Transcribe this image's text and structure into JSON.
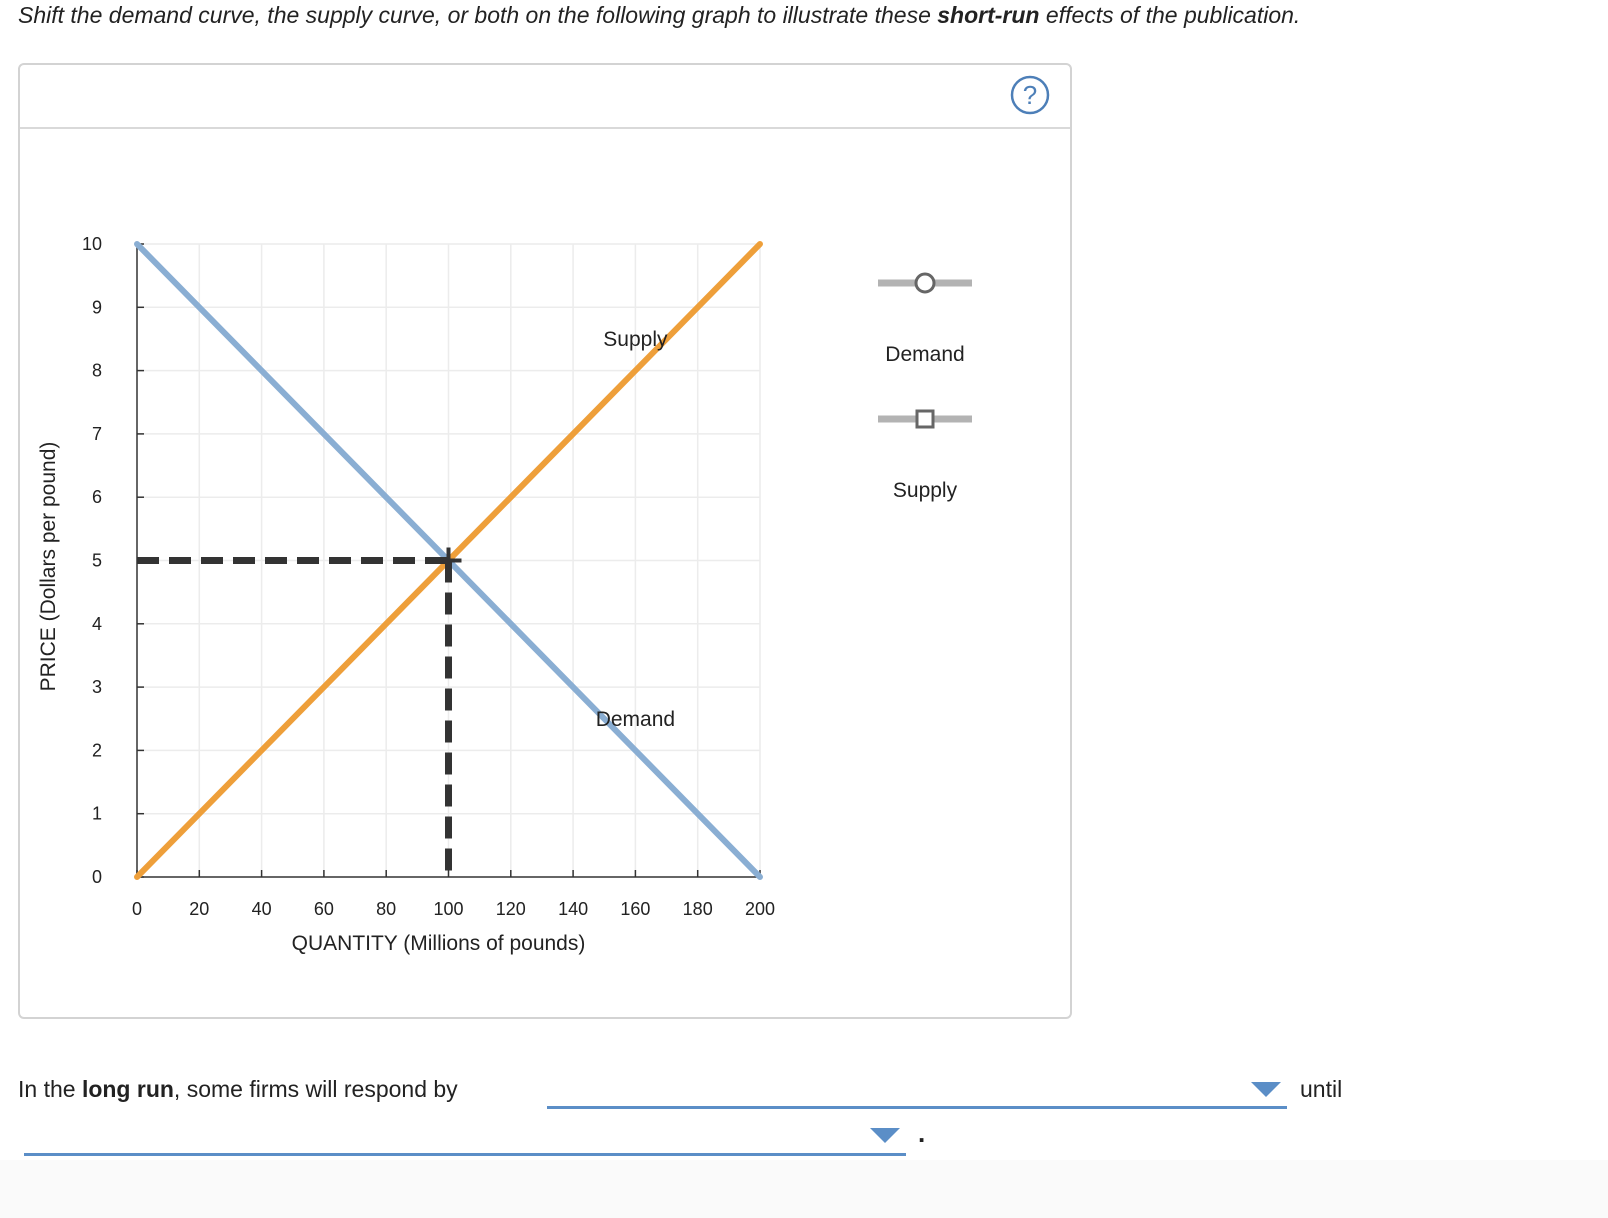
{
  "instruction": {
    "pre": "Shift the demand curve, the supply curve, or both on the following graph to illustrate these ",
    "bold": "short-run",
    "post": " effects of the publication."
  },
  "help": {
    "icon": "question-circle-icon",
    "label": "?"
  },
  "palette": {
    "legend_items": [
      "Demand",
      "Supply"
    ]
  },
  "long_run": {
    "pre": "In the ",
    "bold": "long run",
    "post": ", some firms will respond by",
    "until": "until",
    "period": "."
  },
  "dropdowns": [
    {
      "selected": ""
    },
    {
      "selected": ""
    }
  ],
  "colors": {
    "demand": "#8aaed3",
    "supply": "#ee9f3a",
    "equilibrium": "#333333",
    "accent": "#5b8ec7",
    "legend_handle": "#b3b3b3"
  },
  "chart_data": {
    "type": "line",
    "xlabel": "QUANTITY (Millions of pounds)",
    "ylabel": "PRICE (Dollars per pound)",
    "xlim": [
      0,
      200
    ],
    "ylim": [
      0,
      10
    ],
    "xticks": [
      0,
      20,
      40,
      60,
      80,
      100,
      120,
      140,
      160,
      180,
      200
    ],
    "yticks": [
      0,
      1,
      2,
      3,
      4,
      5,
      6,
      7,
      8,
      9,
      10
    ],
    "grid": true,
    "series": [
      {
        "name": "Demand",
        "label": "Demand",
        "points": [
          [
            0,
            10
          ],
          [
            200,
            0
          ]
        ],
        "label_at": [
          160,
          2.5
        ]
      },
      {
        "name": "Supply",
        "label": "Supply",
        "points": [
          [
            0,
            0
          ],
          [
            200,
            10
          ]
        ],
        "label_at": [
          160,
          8.5
        ]
      }
    ],
    "equilibrium": {
      "x": 100,
      "y": 5
    }
  }
}
